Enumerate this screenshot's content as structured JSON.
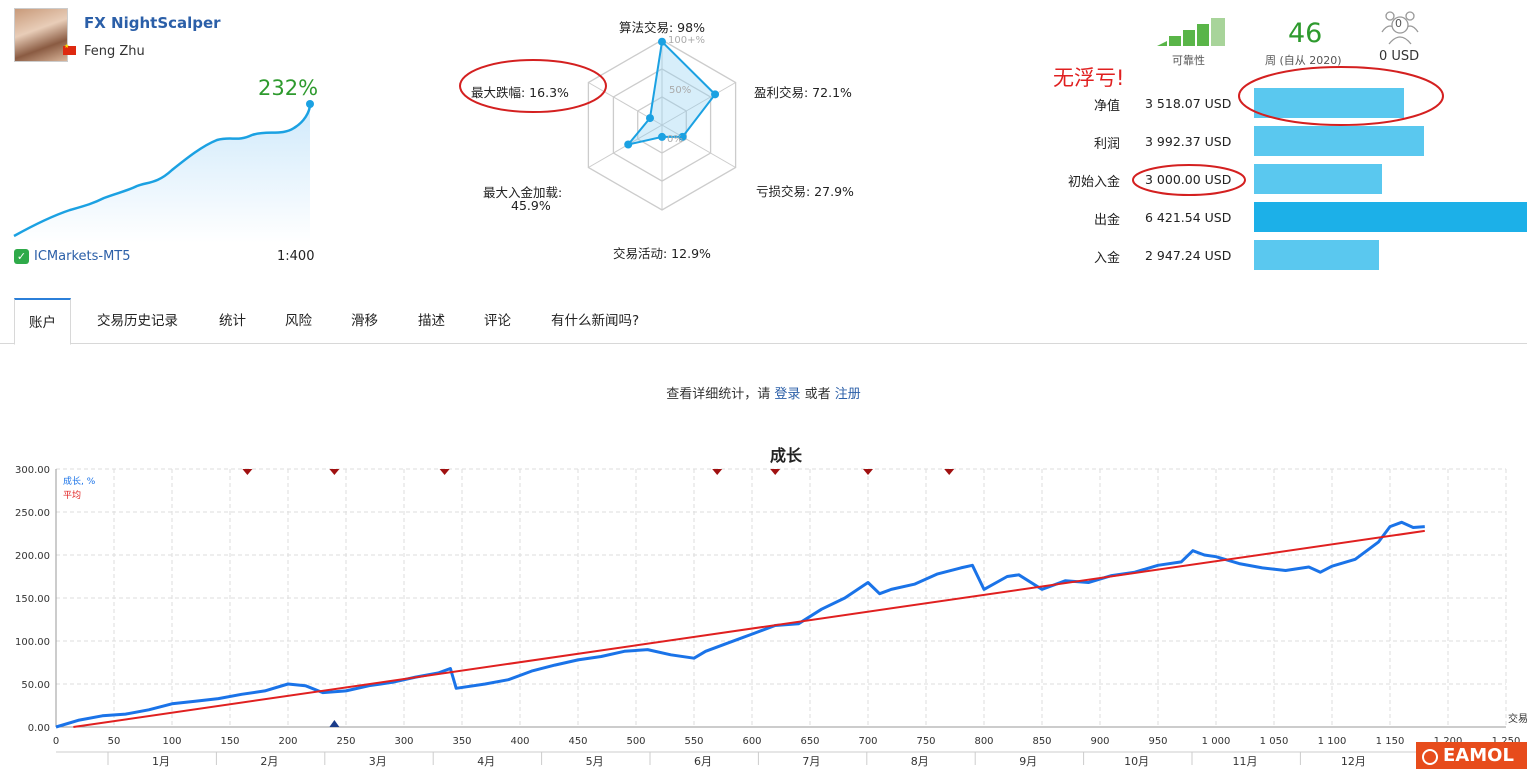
{
  "signal": {
    "name": "FX NightScalper",
    "author": "Feng Zhu",
    "growth": "232%",
    "broker": "ICMarkets-MT5",
    "leverage": "1:400"
  },
  "radar": {
    "algo_trading": "算法交易: 98%",
    "profit_trades": "盈利交易: 72.1%",
    "loss_trades": "亏损交易: 27.9%",
    "trading_activity": "交易活动: 12.9%",
    "max_deposit_load_1": "最大入金加载:",
    "max_deposit_load_2": "45.9%",
    "max_drawdown": "最大跌幅: 16.3%",
    "tick_100": "100+%",
    "tick_50": "50%",
    "tick_0": "0%",
    "values": [
      98,
      72.1,
      27.9,
      12.9,
      45.9,
      16.3
    ]
  },
  "stats": {
    "reliability_label": "可靠性",
    "weeks": "46",
    "weeks_label": "周 (自从 2020)",
    "subscribers_count": "0",
    "subscribers_funds": "0 USD",
    "no_floating_loss": "无浮亏!",
    "rows": [
      {
        "label": "净值",
        "value": "3 518.07 USD",
        "amount": 3518.07
      },
      {
        "label": "利润",
        "value": "3 992.37 USD",
        "amount": 3992.37
      },
      {
        "label": "初始入金",
        "value": "3 000.00 USD",
        "amount": 3000.0
      },
      {
        "label": "出金",
        "value": "6 421.54 USD",
        "amount": 6421.54
      },
      {
        "label": "入金",
        "value": "2 947.24 USD",
        "amount": 2947.24
      }
    ]
  },
  "tabs": [
    "账户",
    "交易历史记录",
    "统计",
    "风险",
    "滑移",
    "描述",
    "评论",
    "有什么新闻吗?"
  ],
  "notice": {
    "prefix": "查看详细统计，请 ",
    "login": "登录",
    "middle": " 或者 ",
    "register": "注册"
  },
  "chart_data": {
    "type": "line",
    "title": "成长",
    "legend": [
      "成长, %",
      "平均"
    ],
    "legend_placement": "top-left",
    "xlabel": "交易",
    "ylim": [
      0,
      300
    ],
    "xlim": [
      0,
      1250
    ],
    "grid": true,
    "y_ticks": [
      "0.00",
      "50.00",
      "100.00",
      "150.00",
      "200.00",
      "250.00",
      "300.00"
    ],
    "x_ticks": [
      "0",
      "50",
      "100",
      "150",
      "200",
      "250",
      "300",
      "350",
      "400",
      "450",
      "500",
      "550",
      "600",
      "650",
      "700",
      "750",
      "800",
      "850",
      "900",
      "950",
      "1 000",
      "1 050",
      "1 100",
      "1 150",
      "1 200",
      "1 250"
    ],
    "months": [
      "1月",
      "2月",
      "3月",
      "4月",
      "5月",
      "6月",
      "7月",
      "8月",
      "9月",
      "10月",
      "11月",
      "12月"
    ],
    "series": [
      {
        "name": "成长, %",
        "color": "#1a73e8",
        "x": [
          0,
          20,
          40,
          60,
          80,
          100,
          120,
          140,
          160,
          180,
          200,
          215,
          230,
          250,
          270,
          290,
          310,
          330,
          340,
          345,
          370,
          390,
          410,
          430,
          450,
          470,
          490,
          510,
          530,
          550,
          560,
          580,
          600,
          620,
          640,
          660,
          680,
          700,
          710,
          720,
          740,
          760,
          780,
          790,
          800,
          820,
          830,
          850,
          870,
          890,
          910,
          930,
          950,
          970,
          980,
          990,
          1000,
          1020,
          1040,
          1060,
          1080,
          1090,
          1100,
          1120,
          1140,
          1150,
          1160,
          1170,
          1180
        ],
        "y": [
          0,
          8,
          13,
          15,
          20,
          27,
          30,
          33,
          38,
          42,
          50,
          48,
          40,
          42,
          48,
          52,
          58,
          63,
          68,
          45,
          50,
          55,
          65,
          72,
          78,
          82,
          88,
          90,
          84,
          80,
          88,
          98,
          108,
          118,
          120,
          137,
          150,
          168,
          155,
          160,
          166,
          178,
          185,
          188,
          160,
          175,
          177,
          160,
          170,
          168,
          176,
          180,
          188,
          192,
          205,
          200,
          198,
          190,
          185,
          182,
          186,
          180,
          187,
          195,
          215,
          233,
          238,
          232,
          233
        ]
      },
      {
        "name": "平均",
        "color": "#e02020",
        "x": [
          15,
          1180
        ],
        "y": [
          0,
          228
        ]
      }
    ],
    "markers_top_x": [
      165,
      240,
      335,
      570,
      620,
      700,
      770
    ],
    "markers_bottom_x": [
      240
    ]
  },
  "brand": {
    "logo": "EAMOL"
  }
}
